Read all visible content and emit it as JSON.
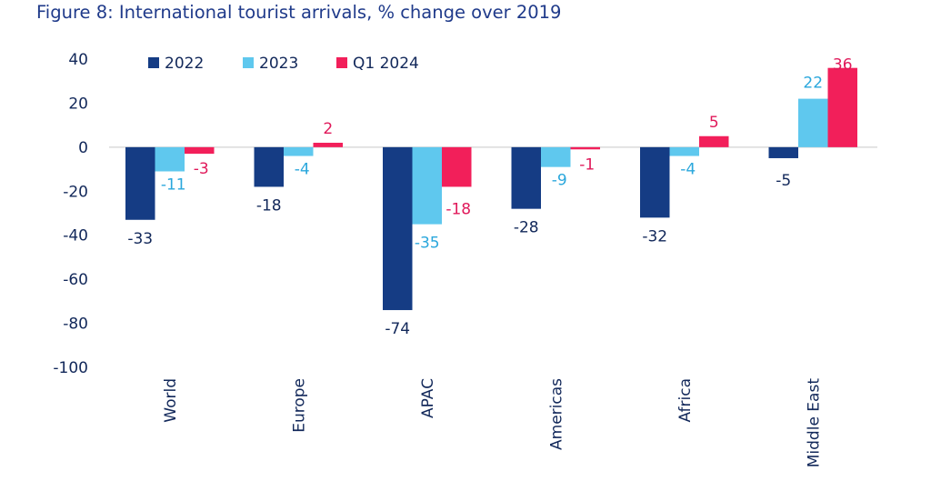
{
  "page_title": "Figure 8: International tourist arrivals, % change over 2019",
  "chart_data": {
    "type": "bar",
    "title": "Figure 8: International tourist arrivals, % change over 2019",
    "xlabel": "",
    "ylabel": "",
    "categories": [
      "World",
      "Europe",
      "APAC",
      "Americas",
      "Africa",
      "Middle East"
    ],
    "series": [
      {
        "name": "2022",
        "color": "#153c84",
        "label_color": "#12285a",
        "values": [
          -33,
          -18,
          -74,
          -28,
          -32,
          -5
        ]
      },
      {
        "name": "2023",
        "color": "#5fc8ee",
        "label_color": "#2aa7dc",
        "values": [
          -11,
          -4,
          -35,
          -9,
          -4,
          22
        ]
      },
      {
        "name": "Q1 2024",
        "color": "#f21f5a",
        "label_color": "#e0195a",
        "values": [
          -3,
          2,
          -18,
          -1,
          5,
          36
        ]
      }
    ],
    "ylim": [
      -100,
      40
    ],
    "yticks": [
      40,
      20,
      0,
      -20,
      -40,
      -60,
      -80,
      -100
    ],
    "legend": "top-left",
    "grid": false
  }
}
